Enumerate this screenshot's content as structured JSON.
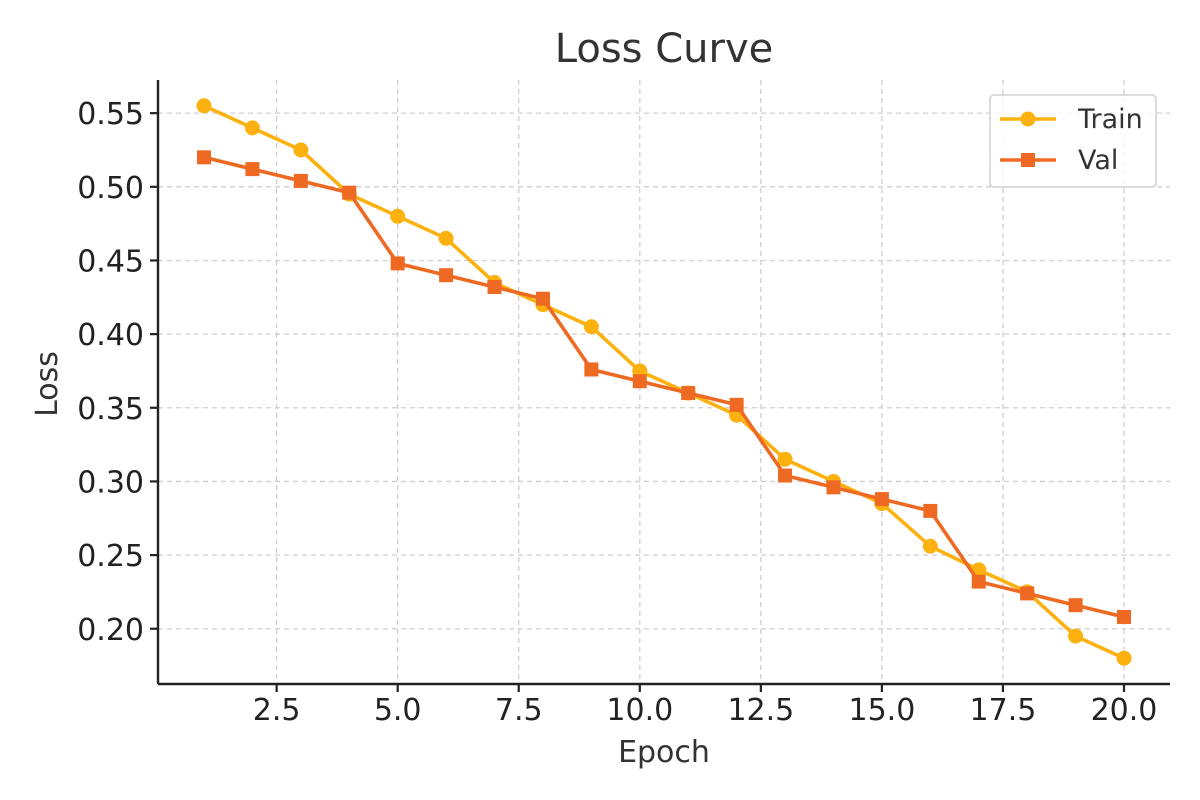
{
  "chart_data": {
    "type": "line",
    "title": "Loss Curve",
    "xlabel": "Epoch",
    "ylabel": "Loss",
    "xlim": [
      0.05,
      20.95
    ],
    "ylim": [
      0.1625,
      0.5725
    ],
    "xticks": [
      2.5,
      5.0,
      7.5,
      10.0,
      12.5,
      15.0,
      17.5,
      20.0
    ],
    "xtick_labels": [
      "2.5",
      "5.0",
      "7.5",
      "10.0",
      "12.5",
      "15.0",
      "17.5",
      "20.0"
    ],
    "yticks": [
      0.2,
      0.25,
      0.3,
      0.35,
      0.4,
      0.45,
      0.5,
      0.55
    ],
    "ytick_labels": [
      "0.20",
      "0.25",
      "0.30",
      "0.35",
      "0.40",
      "0.45",
      "0.50",
      "0.55"
    ],
    "grid": true,
    "legend_position": "top-right",
    "x": [
      1,
      2,
      3,
      4,
      5,
      6,
      7,
      8,
      9,
      10,
      11,
      12,
      13,
      14,
      15,
      16,
      17,
      18,
      19,
      20
    ],
    "series": [
      {
        "name": "Train",
        "marker": "circle",
        "color": "#FDB10F",
        "values": [
          0.555,
          0.54,
          0.525,
          0.495,
          0.48,
          0.465,
          0.435,
          0.42,
          0.405,
          0.375,
          0.36,
          0.345,
          0.315,
          0.3,
          0.285,
          0.256,
          0.24,
          0.225,
          0.195,
          0.18
        ]
      },
      {
        "name": "Val",
        "marker": "square",
        "color": "#EE6A23",
        "values": [
          0.52,
          0.512,
          0.504,
          0.496,
          0.448,
          0.44,
          0.432,
          0.424,
          0.376,
          0.368,
          0.36,
          0.352,
          0.304,
          0.296,
          0.288,
          0.28,
          0.232,
          0.224,
          0.216,
          0.208
        ]
      }
    ]
  }
}
